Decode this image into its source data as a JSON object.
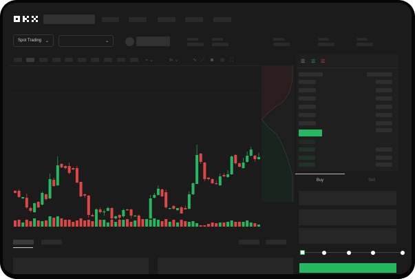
{
  "header": {
    "logo": "OKX"
  },
  "toolbar": {
    "market_select": "Spot Trading",
    "pair_select": "",
    "dropdown_icon": "chevron-down-icon"
  },
  "order_panel": {
    "buy_tab": "Buy",
    "sell_tab": "Sell",
    "slider_percent": 0,
    "buy_color": "#25b860",
    "sell_color": "#e04646"
  },
  "chart_data": {
    "type": "candlestick",
    "up_color": "#25b860",
    "down_color": "#e04646",
    "candles": [
      [
        218,
        215,
        219,
        214
      ],
      [
        218,
        209,
        220,
        208
      ],
      [
        207,
        209,
        209,
        206
      ],
      [
        208,
        194,
        214,
        192
      ],
      [
        193,
        189,
        195,
        187
      ],
      [
        187,
        200,
        201,
        186
      ],
      [
        202,
        194,
        203,
        193
      ],
      [
        198,
        215,
        217,
        197
      ],
      [
        213,
        206,
        214,
        204
      ],
      [
        207,
        235,
        243,
        206
      ],
      [
        234,
        225,
        237,
        224
      ],
      [
        226,
        255,
        268,
        225
      ],
      [
        257,
        252,
        258,
        251
      ],
      [
        254,
        251,
        255,
        249
      ],
      [
        254,
        244,
        259,
        242
      ],
      [
        251,
        249,
        252,
        248
      ],
      [
        251,
        230,
        254,
        229
      ],
      [
        231,
        210,
        231,
        209
      ],
      [
        213,
        211,
        214,
        208
      ],
      [
        211,
        183,
        212,
        179
      ],
      [
        183,
        181,
        185,
        180
      ],
      [
        182,
        191,
        193,
        180
      ],
      [
        191,
        187,
        194,
        185
      ],
      [
        188,
        188,
        191,
        182
      ],
      [
        189,
        193,
        195,
        188
      ],
      [
        193,
        178,
        194,
        174
      ],
      [
        178,
        181,
        182,
        176
      ],
      [
        183,
        179,
        184,
        176
      ],
      [
        181,
        190,
        192,
        179
      ],
      [
        191,
        190,
        192,
        189
      ],
      [
        191,
        182,
        192,
        178
      ],
      [
        182,
        182,
        183,
        181
      ],
      [
        182,
        172,
        184,
        171
      ],
      [
        173,
        171,
        174,
        170
      ],
      [
        173,
        177,
        177,
        171
      ],
      [
        178,
        207,
        212,
        177
      ],
      [
        208,
        212,
        215,
        207
      ],
      [
        212,
        221,
        226,
        211
      ],
      [
        220,
        210,
        221,
        209
      ],
      [
        216,
        194,
        220,
        192
      ],
      [
        192,
        193,
        193,
        191
      ],
      [
        196,
        192,
        197,
        191
      ],
      [
        190,
        193,
        193,
        189
      ],
      [
        194,
        185,
        196,
        185
      ],
      [
        193,
        191,
        197,
        191
      ],
      [
        192,
        213,
        217,
        191
      ],
      [
        213,
        229,
        230,
        212
      ],
      [
        228,
        270,
        285,
        228
      ],
      [
        272,
        260,
        273,
        257
      ],
      [
        259,
        235,
        260,
        232
      ],
      [
        237,
        235,
        238,
        233
      ],
      [
        235,
        229,
        236,
        228
      ],
      [
        229,
        228,
        233,
        227
      ],
      [
        226,
        239,
        243,
        225
      ],
      [
        241,
        239,
        244,
        238
      ],
      [
        238,
        242,
        248,
        237
      ],
      [
        242,
        268,
        269,
        241
      ],
      [
        270,
        258,
        271,
        256
      ],
      [
        258,
        253,
        259,
        252
      ],
      [
        251,
        259,
        266,
        250
      ],
      [
        260,
        269,
        275,
        259
      ],
      [
        269,
        278,
        282,
        268
      ],
      [
        269,
        264,
        270,
        260
      ],
      [
        264,
        267,
        273,
        263
      ]
    ],
    "volumes": [
      9,
      10,
      6,
      10,
      8,
      12,
      9,
      8,
      9,
      15,
      13,
      15,
      12,
      10,
      10,
      7,
      9,
      12,
      9,
      10,
      8,
      16,
      10,
      10,
      6,
      10,
      7,
      10,
      10,
      11,
      7,
      9,
      11,
      11,
      9,
      10,
      12,
      10,
      8,
      11,
      7,
      10,
      6,
      10,
      8,
      7,
      8,
      5,
      2,
      2,
      4,
      6,
      5,
      6,
      6,
      7,
      9,
      7,
      7,
      7,
      9,
      6,
      5,
      3
    ]
  }
}
